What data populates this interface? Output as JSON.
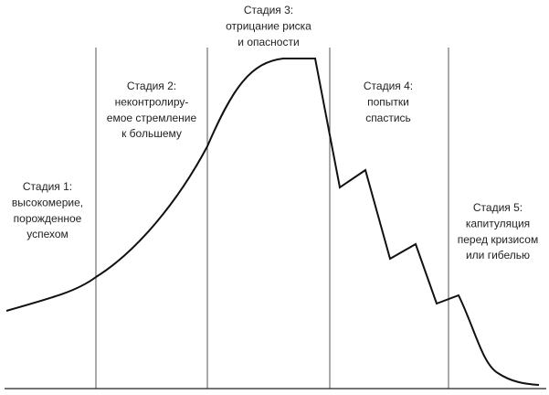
{
  "stages": [
    {
      "lines": [
        "Стадия 1:",
        "высокомерие,",
        "порожденное",
        "успехом"
      ]
    },
    {
      "lines": [
        "Стадия 2:",
        "неконтролиру-",
        "емое стремление",
        "к большему"
      ]
    },
    {
      "lines": [
        "Стадия 3:",
        "отрицание риска",
        "и опасности"
      ]
    },
    {
      "lines": [
        "Стадия 4:",
        "попытки",
        "спастись"
      ]
    },
    {
      "lines": [
        "Стадия 5:",
        "капитуляция",
        "перед кризисом",
        "или гибелью"
      ]
    }
  ]
}
